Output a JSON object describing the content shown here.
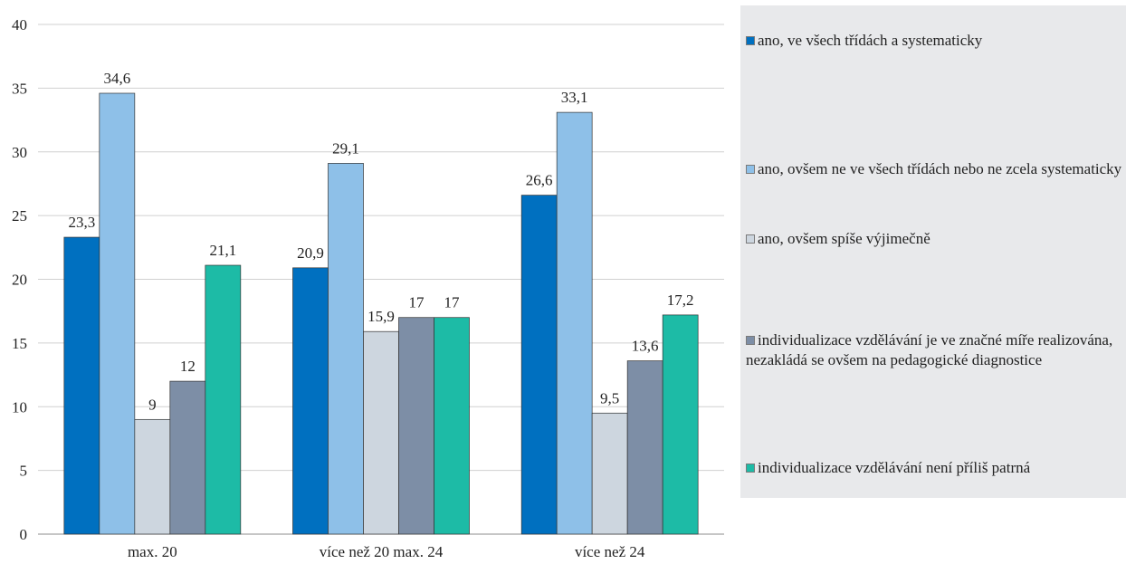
{
  "chart_data": {
    "type": "bar",
    "categories": [
      "max. 20",
      "více než 20 max. 24",
      "více než 24"
    ],
    "series": [
      {
        "name": "ano, ve všech třídách a systematicky",
        "color": "#0070c0",
        "values": [
          23.3,
          20.9,
          26.6
        ],
        "labels": [
          "23,3",
          "20,9",
          "26,6"
        ]
      },
      {
        "name": "ano, ovšem ne ve všech třídách nebo ne zcela systematicky",
        "color": "#8ec0e8",
        "values": [
          34.6,
          29.1,
          33.1
        ],
        "labels": [
          "34,6",
          "29,1",
          "33,1"
        ]
      },
      {
        "name": "ano, ovšem spíše výjimečně",
        "color": "#cdd6df",
        "values": [
          9,
          15.9,
          9.5
        ],
        "labels": [
          "9",
          "15,9",
          "9,5"
        ]
      },
      {
        "name": "individualizace vzdělávání je ve značné míře realizována, nezakládá se ovšem na pedagogické diagnostice",
        "color": "#7d8ea6",
        "values": [
          12,
          17,
          13.6
        ],
        "labels": [
          "12",
          "17",
          "13,6"
        ]
      },
      {
        "name": "individualizace vzdělávání není příliš patrná",
        "color": "#1dbba6",
        "values": [
          21.1,
          17,
          17.2
        ],
        "labels": [
          "21,1",
          "17",
          "17,2"
        ]
      }
    ],
    "ylim": [
      0,
      40
    ],
    "yticks": [
      "0",
      "5",
      "10",
      "15",
      "20",
      "25",
      "30",
      "35",
      "40"
    ],
    "grid": true,
    "legend": "right"
  }
}
